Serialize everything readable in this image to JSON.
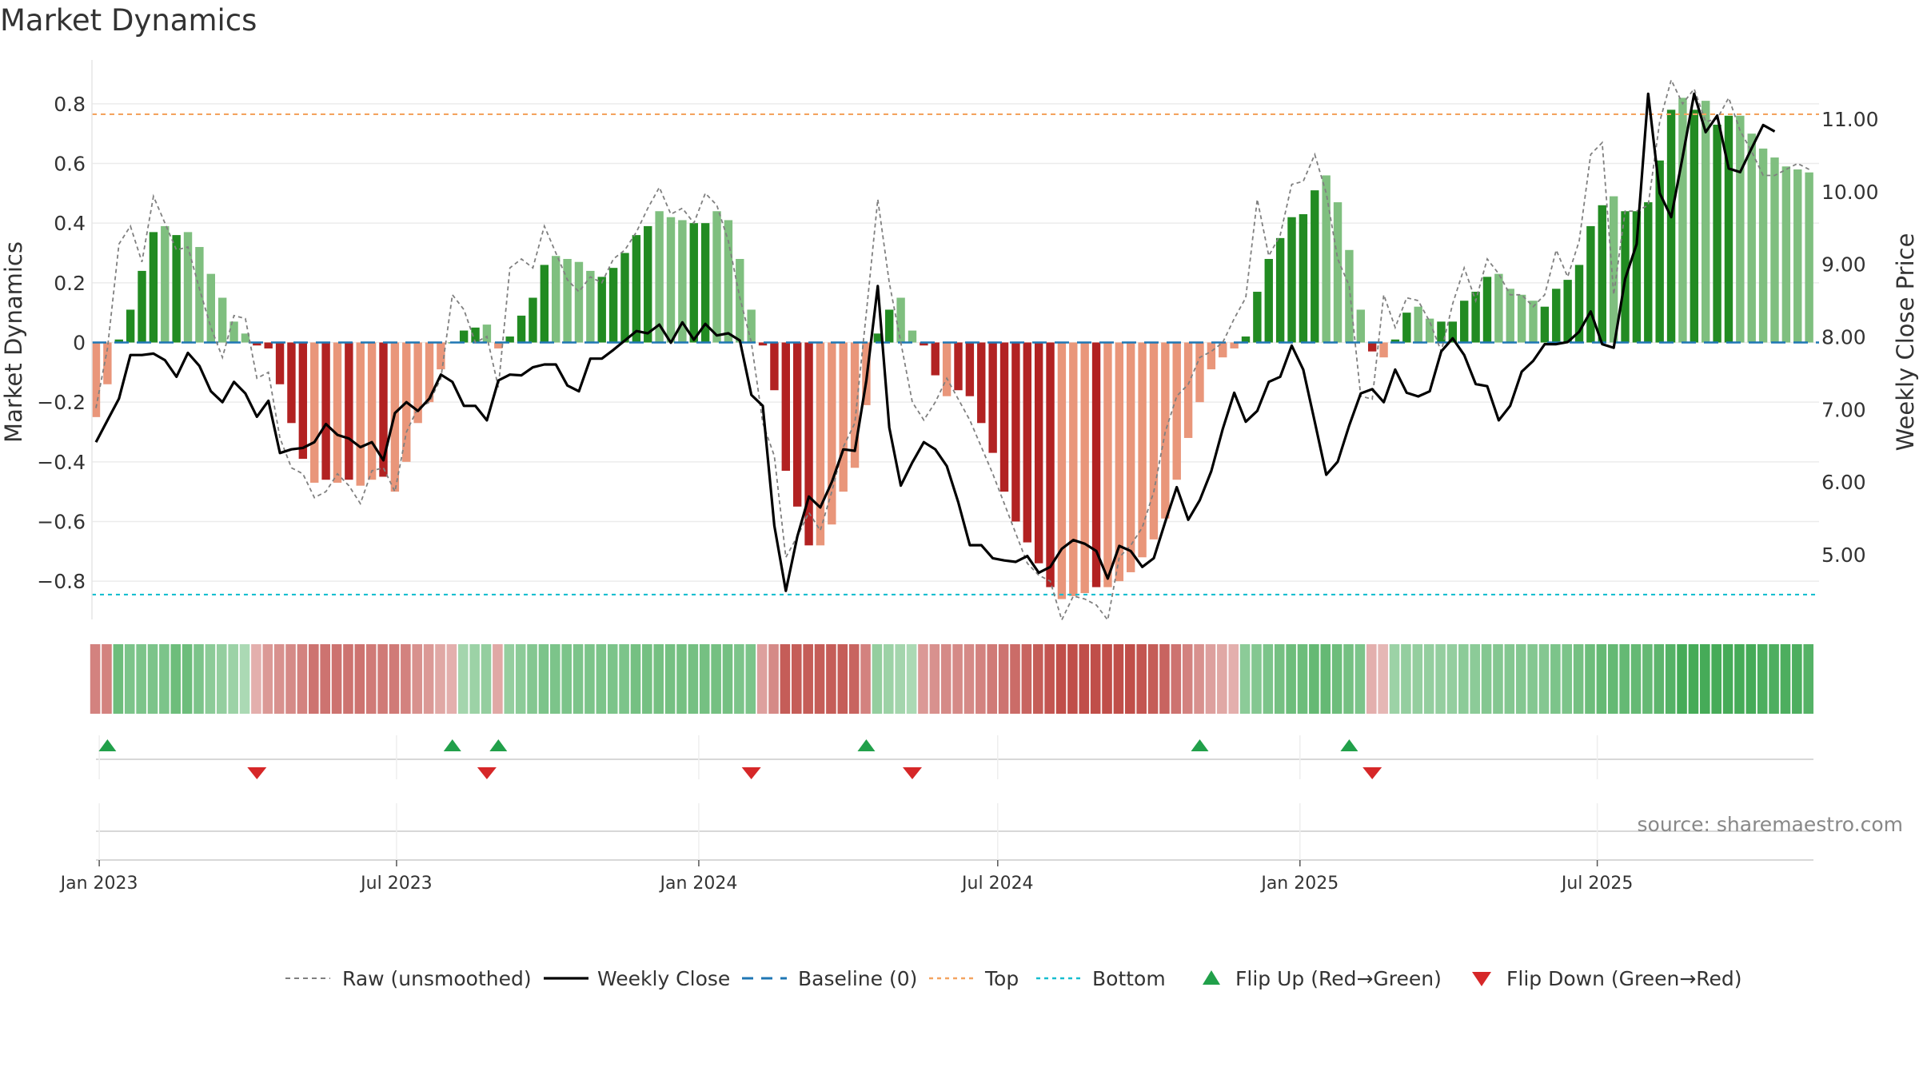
{
  "title": "Market Dynamics",
  "source": "source: sharemaestro.com",
  "colors": {
    "green_strong": "#228B22",
    "green_light": "#7FBF7F",
    "red_strong": "#B22222",
    "red_light": "#E9967A",
    "close": "#000000",
    "raw": "#808080",
    "baseline": "#1F77B4",
    "top": "#F4A460",
    "bottom": "#17BECF",
    "flip_up": "#21A04A",
    "flip_down": "#D62728"
  },
  "chart_data": {
    "type": "bar",
    "title": "Market Dynamics",
    "ylabel": "Market Dynamics",
    "y2label": "Weekly Close Price",
    "ylim": [
      -0.92,
      0.94
    ],
    "y2lim": [
      4.15,
      12.0
    ],
    "yticks": [
      "0.8",
      "0.6",
      "0.4",
      "0.2",
      "0",
      "−0.2",
      "−0.4",
      "−0.6",
      "−0.8"
    ],
    "y2ticks": [
      "11.00",
      "10.00",
      "9.00",
      "8.00",
      "7.00",
      "6.00",
      "5.00"
    ],
    "xticks": [
      "Jan 2023",
      "Jul 2023",
      "Jan 2024",
      "Jul 2024",
      "Jan 2025",
      "Jul 2025"
    ],
    "start_date": "2022-12-30",
    "top_level": 0.765,
    "bottom_level": -0.845,
    "baseline": 0,
    "grid": true,
    "series": [
      {
        "name": "Market Dynamics",
        "values": [
          -0.25,
          -0.14,
          0.01,
          0.11,
          0.24,
          0.37,
          0.39,
          0.36,
          0.37,
          0.32,
          0.23,
          0.15,
          0.07,
          0.03,
          -0.01,
          -0.02,
          -0.14,
          -0.27,
          -0.39,
          -0.47,
          -0.46,
          -0.47,
          -0.46,
          -0.48,
          -0.46,
          -0.45,
          -0.5,
          -0.4,
          -0.27,
          -0.2,
          -0.09,
          0.0,
          0.04,
          0.05,
          0.06,
          -0.02,
          0.02,
          0.09,
          0.15,
          0.26,
          0.29,
          0.28,
          0.27,
          0.24,
          0.22,
          0.25,
          0.3,
          0.36,
          0.39,
          0.44,
          0.42,
          0.41,
          0.4,
          0.4,
          0.44,
          0.41,
          0.28,
          0.11,
          -0.01,
          -0.16,
          -0.43,
          -0.55,
          -0.68,
          -0.68,
          -0.61,
          -0.5,
          -0.42,
          -0.21,
          0.03,
          0.11,
          0.15,
          0.04,
          -0.01,
          -0.11,
          -0.18,
          -0.16,
          -0.18,
          -0.27,
          -0.37,
          -0.5,
          -0.6,
          -0.67,
          -0.74,
          -0.82,
          -0.86,
          -0.85,
          -0.84,
          -0.82,
          -0.82,
          -0.8,
          -0.77,
          -0.72,
          -0.66,
          -0.59,
          -0.46,
          -0.32,
          -0.2,
          -0.09,
          -0.05,
          -0.02,
          0.02,
          0.17,
          0.28,
          0.35,
          0.42,
          0.43,
          0.51,
          0.56,
          0.47,
          0.31,
          0.11,
          -0.03,
          -0.05,
          0.01,
          0.1,
          0.12,
          0.08,
          0.07,
          0.07,
          0.14,
          0.17,
          0.22,
          0.23,
          0.18,
          0.16,
          0.14,
          0.12,
          0.18,
          0.21,
          0.26,
          0.39,
          0.46,
          0.49,
          0.44,
          0.44,
          0.47,
          0.61,
          0.78,
          0.82,
          0.78,
          0.81,
          0.73,
          0.76,
          0.76,
          0.7,
          0.65,
          0.62,
          0.59,
          0.58,
          0.57
        ]
      },
      {
        "name": "Raw (unsmoothed)",
        "values": [
          -0.22,
          -0.02,
          0.33,
          0.39,
          0.27,
          0.49,
          0.4,
          0.31,
          0.32,
          0.18,
          0.05,
          -0.05,
          0.09,
          0.08,
          -0.12,
          -0.1,
          -0.32,
          -0.42,
          -0.44,
          -0.52,
          -0.5,
          -0.44,
          -0.48,
          -0.54,
          -0.43,
          -0.42,
          -0.5,
          -0.3,
          -0.22,
          -0.2,
          -0.12,
          0.16,
          0.11,
          0.0,
          0.02,
          -0.15,
          0.25,
          0.28,
          0.25,
          0.39,
          0.3,
          0.21,
          0.17,
          0.22,
          0.2,
          0.28,
          0.31,
          0.37,
          0.45,
          0.52,
          0.43,
          0.45,
          0.4,
          0.5,
          0.46,
          0.34,
          0.15,
          0.0,
          -0.27,
          -0.38,
          -0.72,
          -0.65,
          -0.57,
          -0.63,
          -0.5,
          -0.35,
          -0.27,
          0.1,
          0.48,
          0.2,
          0.0,
          -0.2,
          -0.26,
          -0.2,
          -0.12,
          -0.19,
          -0.26,
          -0.35,
          -0.44,
          -0.54,
          -0.64,
          -0.74,
          -0.78,
          -0.8,
          -0.93,
          -0.85,
          -0.86,
          -0.88,
          -0.93,
          -0.72,
          -0.68,
          -0.62,
          -0.5,
          -0.3,
          -0.18,
          -0.14,
          -0.05,
          -0.03,
          0.0,
          0.08,
          0.15,
          0.48,
          0.29,
          0.36,
          0.53,
          0.54,
          0.63,
          0.5,
          0.28,
          0.19,
          -0.18,
          -0.19,
          0.16,
          0.05,
          0.15,
          0.14,
          0.07,
          -0.03,
          0.13,
          0.25,
          0.14,
          0.28,
          0.23,
          0.16,
          0.16,
          0.12,
          0.16,
          0.31,
          0.22,
          0.34,
          0.63,
          0.67,
          0.16,
          0.44,
          0.44,
          0.46,
          0.74,
          0.88,
          0.8,
          0.85,
          0.74,
          0.75,
          0.82,
          0.71,
          0.64,
          0.56,
          0.56,
          0.58,
          0.6,
          0.58
        ]
      },
      {
        "name": "Weekly Close",
        "values": [
          6.55,
          6.85,
          7.15,
          7.75,
          7.75,
          7.77,
          7.68,
          7.45,
          7.78,
          7.6,
          7.25,
          7.1,
          7.38,
          7.22,
          6.9,
          7.12,
          6.4,
          6.45,
          6.47,
          6.55,
          6.8,
          6.65,
          6.6,
          6.48,
          6.55,
          6.3,
          6.95,
          7.1,
          6.98,
          7.15,
          7.48,
          7.38,
          7.05,
          7.05,
          6.85,
          7.4,
          7.48,
          7.47,
          7.58,
          7.62,
          7.62,
          7.33,
          7.25,
          7.7,
          7.7,
          7.82,
          7.95,
          8.08,
          8.05,
          8.17,
          7.92,
          8.2,
          7.96,
          8.18,
          8.02,
          8.05,
          7.95,
          7.2,
          7.05,
          5.4,
          4.5,
          5.25,
          5.8,
          5.65,
          6.0,
          6.45,
          6.43,
          7.4,
          8.7,
          6.75,
          5.95,
          6.27,
          6.55,
          6.45,
          6.22,
          5.72,
          5.13,
          5.13,
          4.95,
          4.92,
          4.9,
          4.98,
          4.75,
          4.83,
          5.08,
          5.2,
          5.15,
          5.05,
          4.67,
          5.12,
          5.05,
          4.83,
          4.95,
          5.45,
          5.93,
          5.48,
          5.75,
          6.15,
          6.73,
          7.23,
          6.83,
          6.98,
          7.38,
          7.45,
          7.88,
          7.55,
          6.83,
          6.1,
          6.28,
          6.78,
          7.22,
          7.28,
          7.1,
          7.55,
          7.23,
          7.18,
          7.25,
          7.8,
          7.98,
          7.75,
          7.35,
          7.32,
          6.85,
          7.05,
          7.52,
          7.67,
          7.9,
          7.9,
          7.93,
          8.07,
          8.35,
          7.9,
          7.85,
          8.8,
          9.28,
          11.35,
          9.98,
          9.65,
          10.48,
          11.35,
          10.82,
          11.05,
          10.32,
          10.27,
          10.6,
          10.92,
          10.83
        ]
      }
    ],
    "heat_strip": [
      -0.5,
      -0.5,
      0.6,
      0.5,
      0.5,
      0.5,
      0.5,
      0.6,
      0.6,
      0.5,
      0.4,
      0.35,
      0.3,
      0.2,
      -0.2,
      -0.35,
      -0.4,
      -0.45,
      -0.5,
      -0.6,
      -0.6,
      -0.6,
      -0.6,
      -0.6,
      -0.55,
      -0.55,
      -0.55,
      -0.5,
      -0.4,
      -0.35,
      -0.25,
      -0.2,
      0.25,
      0.3,
      0.35,
      -0.25,
      0.35,
      0.4,
      0.45,
      0.5,
      0.5,
      0.5,
      0.5,
      0.5,
      0.5,
      0.5,
      0.5,
      0.55,
      0.55,
      0.55,
      0.55,
      0.55,
      0.55,
      0.55,
      0.55,
      0.55,
      0.5,
      0.5,
      -0.3,
      -0.45,
      -0.75,
      -0.75,
      -0.75,
      -0.75,
      -0.75,
      -0.75,
      -0.7,
      -0.5,
      0.35,
      0.3,
      0.25,
      0.2,
      -0.35,
      -0.4,
      -0.45,
      -0.45,
      -0.45,
      -0.5,
      -0.55,
      -0.6,
      -0.65,
      -0.7,
      -0.75,
      -0.8,
      -0.85,
      -0.85,
      -0.85,
      -0.85,
      -0.85,
      -0.85,
      -0.85,
      -0.8,
      -0.75,
      -0.7,
      -0.6,
      -0.5,
      -0.4,
      -0.3,
      -0.25,
      -0.2,
      0.4,
      0.45,
      0.5,
      0.55,
      0.6,
      0.6,
      0.65,
      0.65,
      0.6,
      0.55,
      0.5,
      -0.2,
      -0.15,
      0.3,
      0.35,
      0.35,
      0.35,
      0.35,
      0.35,
      0.4,
      0.4,
      0.45,
      0.45,
      0.45,
      0.45,
      0.45,
      0.45,
      0.5,
      0.5,
      0.55,
      0.6,
      0.65,
      0.65,
      0.65,
      0.65,
      0.65,
      0.7,
      0.75,
      0.85,
      0.85,
      0.85,
      0.85,
      0.85,
      0.85,
      0.85,
      0.8,
      0.8,
      0.8,
      0.8,
      0.75
    ],
    "flip_up_weeks": [
      1,
      31,
      35,
      67,
      96,
      109
    ],
    "flip_down_weeks": [
      14,
      34,
      57,
      71,
      111
    ],
    "legend": [
      "Raw (unsmoothed)",
      "Weekly Close",
      "Baseline (0)",
      "Top",
      "Bottom",
      "Flip Up (Red→Green)",
      "Flip Down (Green→Red)"
    ],
    "legend_placement": "bottom-center"
  }
}
